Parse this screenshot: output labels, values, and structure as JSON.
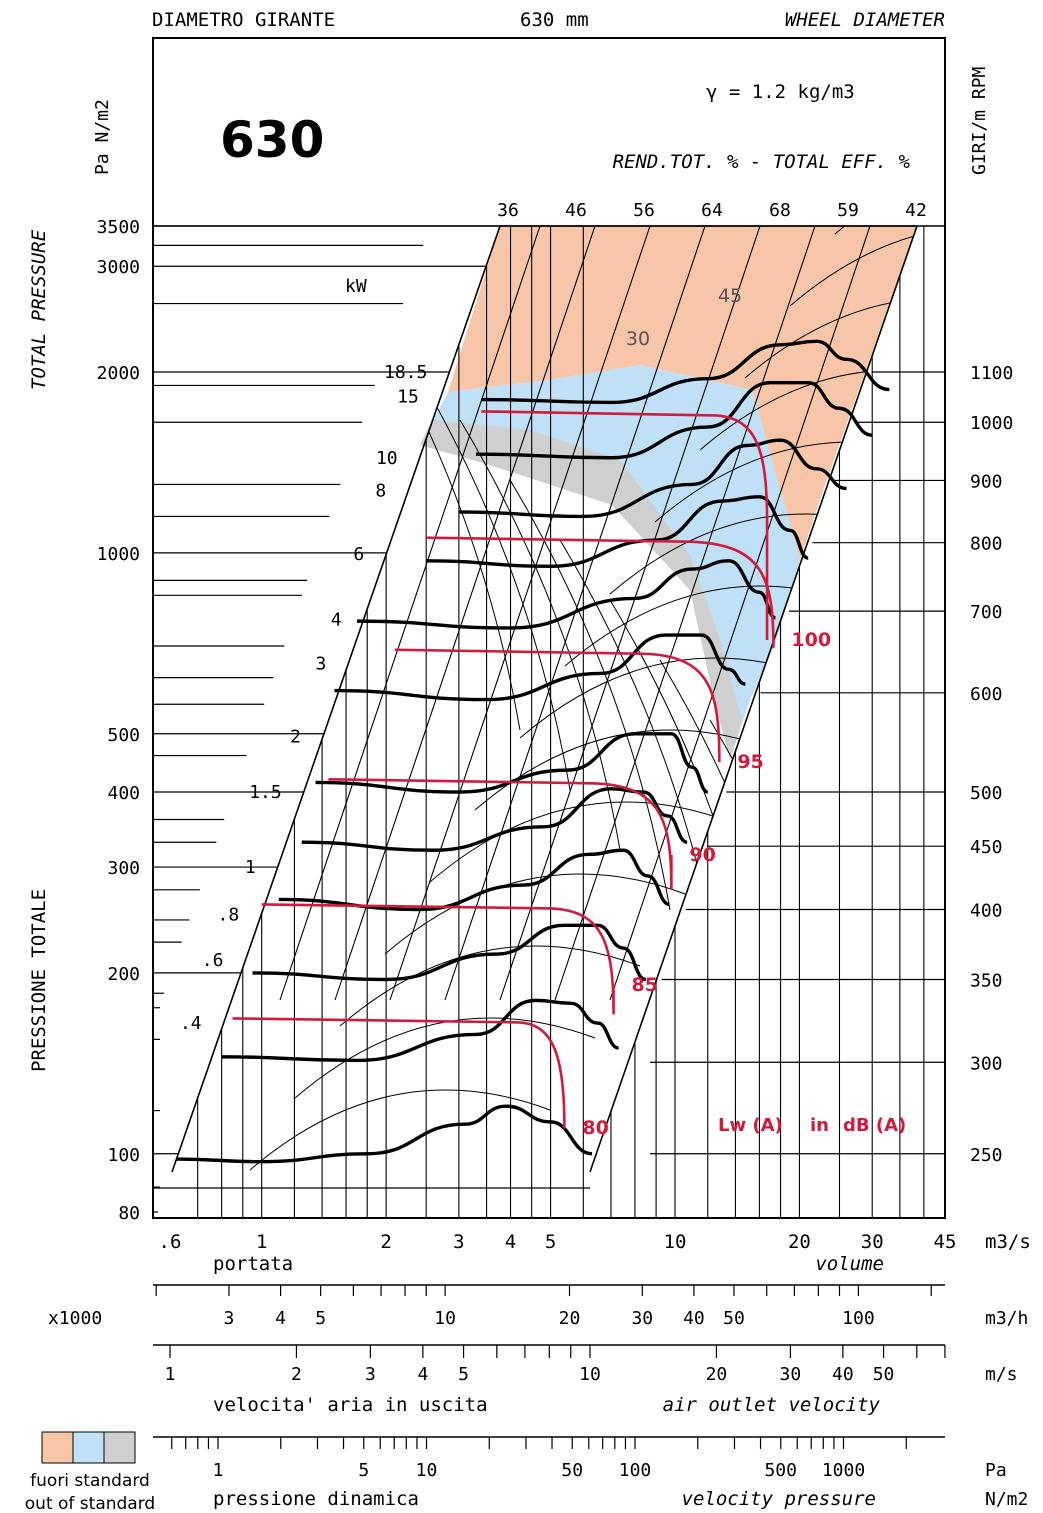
{
  "header": {
    "left": "DIAMETRO GIRANTE",
    "center": "630 mm",
    "right": "WHEEL DIAMETER"
  },
  "model": "630",
  "density": "γ = 1.2 kg/m3",
  "efficiency_title": "REND.TOT. % - TOTAL EFF. %",
  "left_unit": "Pa N/m2",
  "right_unit": "GIRI/m RPM",
  "kw_label": "kW",
  "y_title_top": "TOTAL PRESSURE",
  "y_title_bottom": "PRESSIONE TOTALE",
  "noise_unit_label": {
    "lw": "Lw (A)",
    "in": "in",
    "db": "dB (A)"
  },
  "legend": {
    "colors": [
      "#f7c6a8",
      "#bfe0f6",
      "#cfcfcf"
    ],
    "line1": "fuori standard",
    "line2": "out of standard"
  },
  "scales": [
    {
      "id": "volume_m3s",
      "unit": "m3/s",
      "label_it": "portata",
      "label_en": "volume",
      "ticks": [
        0.6,
        1,
        2,
        3,
        4,
        5,
        10,
        20,
        30,
        45
      ],
      "tick_labels": [
        ".6",
        "1",
        "2",
        "3",
        "4",
        "5",
        "10",
        "20",
        "30",
        "45"
      ]
    },
    {
      "id": "volume_m3h",
      "unit": "m3/h",
      "prefix": "x1000",
      "tick_labels": [
        "3",
        "4",
        "5",
        "10",
        "20",
        "30",
        "40",
        "50",
        "100"
      ],
      "ticks": [
        3,
        4,
        5,
        10,
        20,
        30,
        40,
        50,
        100
      ]
    },
    {
      "id": "outlet_velocity",
      "unit": "m/s",
      "label_it": "velocita' aria in uscita",
      "label_en": "air outlet velocity",
      "tick_labels": [
        "1",
        "2",
        "3",
        "4",
        "5",
        "10",
        "20",
        "30",
        "40",
        "50"
      ],
      "ticks": [
        1,
        2,
        3,
        4,
        5,
        10,
        20,
        30,
        40,
        50
      ]
    },
    {
      "id": "velocity_pressure",
      "unit_top": "Pa",
      "unit_bottom": "N/m2",
      "label_it": "pressione dinamica",
      "label_en": "velocity pressure",
      "tick_labels": [
        "1",
        "5",
        "10",
        "50",
        "100",
        "500",
        "1000"
      ],
      "ticks": [
        1,
        5,
        10,
        50,
        100,
        500,
        1000
      ]
    }
  ],
  "chart_data": {
    "type": "line",
    "x_axis": {
      "scale": "log",
      "unit": "m3/s",
      "range": [
        0.6,
        45
      ]
    },
    "y_axis": {
      "scale": "log",
      "unit": "Pa",
      "range": [
        80,
        3500
      ],
      "ticks": [
        80,
        100,
        200,
        300,
        400,
        500,
        1000,
        2000,
        3000,
        3500
      ],
      "tick_labels": [
        "80",
        "100",
        "200",
        "300",
        "400",
        "500",
        "1000",
        "2000",
        "3000",
        "3500"
      ]
    },
    "efficiency_labels": [
      "36",
      "46",
      "56",
      "64",
      "68",
      "59",
      "42"
    ],
    "rpm_ticks": [
      {
        "label": "1100",
        "p": 2000
      },
      {
        "label": "1000",
        "p": 1650
      },
      {
        "label": "900",
        "p": 1320
      },
      {
        "label": "800",
        "p": 1040
      },
      {
        "label": "700",
        "p": 800
      },
      {
        "label": "600",
        "p": 585
      },
      {
        "label": "500",
        "p": 400
      },
      {
        "label": "450",
        "p": 325
      },
      {
        "label": "400",
        "p": 255
      },
      {
        "label": "350",
        "p": 195
      },
      {
        "label": "300",
        "p": 142
      },
      {
        "label": "250",
        "p": 100
      }
    ],
    "power_labels": [
      {
        "label": "18.5",
        "p": 2000
      },
      {
        "label": "15",
        "p": 1820
      },
      {
        "label": "10",
        "p": 1440
      },
      {
        "label": "8",
        "p": 1270
      },
      {
        "label": "6",
        "p": 995
      },
      {
        "label": "4",
        "p": 775
      },
      {
        "label": "3",
        "p": 655
      },
      {
        "label": "2",
        "p": 495
      },
      {
        "label": "1.5",
        "p": 400
      },
      {
        "label": "1",
        "p": 300
      },
      {
        "label": ".8",
        "p": 250
      },
      {
        "label": ".6",
        "p": 210
      },
      {
        "label": ".4",
        "p": 165
      }
    ],
    "shaded_labels": [
      "30",
      "45"
    ],
    "noise_levels": [
      {
        "label": "80",
        "q0": 0.85,
        "p": 168,
        "q1": 4.2,
        "qv": 5.4
      },
      {
        "label": "85",
        "q0": 1.0,
        "p": 260,
        "q1": 5.0,
        "qv": 7.1
      },
      {
        "label": "90",
        "q0": 1.45,
        "p": 420,
        "q1": 6.3,
        "qv": 9.8
      },
      {
        "label": "95",
        "q0": 2.1,
        "p": 690,
        "q1": 8.4,
        "qv": 12.8
      },
      {
        "label": "100",
        "q0": 2.5,
        "p": 1060,
        "q1": 10.8,
        "qv": 17.3
      },
      {
        "label": "",
        "q0": 3.4,
        "p": 1720,
        "q1": 12.5,
        "qv": 16.7
      }
    ],
    "rpm_curves": [
      {
        "rpm": 1100,
        "pts": [
          [
            3.4,
            1800
          ],
          [
            7,
            1780
          ],
          [
            12,
            1950
          ],
          [
            18,
            2220
          ],
          [
            22,
            2250
          ],
          [
            26,
            2100
          ],
          [
            33,
            1870
          ]
        ]
      },
      {
        "rpm": 1000,
        "pts": [
          [
            3.3,
            1460
          ],
          [
            7,
            1440
          ],
          [
            12,
            1620
          ],
          [
            17,
            1920
          ],
          [
            21,
            1920
          ],
          [
            25,
            1740
          ],
          [
            30,
            1570
          ]
        ]
      },
      {
        "rpm": 900,
        "pts": [
          [
            3.0,
            1170
          ],
          [
            6,
            1150
          ],
          [
            11,
            1300
          ],
          [
            15,
            1510
          ],
          [
            18,
            1540
          ],
          [
            22,
            1380
          ],
          [
            26,
            1280
          ]
        ]
      },
      {
        "rpm": 800,
        "pts": [
          [
            2.5,
            970
          ],
          [
            5,
            950
          ],
          [
            9,
            1050
          ],
          [
            13,
            1220
          ],
          [
            16,
            1240
          ],
          [
            19,
            1090
          ],
          [
            21,
            980
          ]
        ]
      },
      {
        "rpm": 700,
        "pts": [
          [
            1.7,
            770
          ],
          [
            4,
            750
          ],
          [
            8,
            840
          ],
          [
            11,
            940
          ],
          [
            13.5,
            970
          ],
          [
            16,
            860
          ],
          [
            17.5,
            780
          ]
        ]
      },
      {
        "rpm": 600,
        "pts": [
          [
            1.5,
            590
          ],
          [
            3.5,
            570
          ],
          [
            6.6,
            630
          ],
          [
            9.5,
            730
          ],
          [
            11.6,
            730
          ],
          [
            13.5,
            640
          ],
          [
            14.8,
            605
          ]
        ]
      },
      {
        "rpm": 500,
        "pts": [
          [
            1.35,
            415
          ],
          [
            3,
            400
          ],
          [
            5.5,
            435
          ],
          [
            8,
            500
          ],
          [
            9.8,
            500
          ],
          [
            11,
            440
          ],
          [
            12,
            400
          ]
        ]
      },
      {
        "rpm": 450,
        "pts": [
          [
            1.25,
            330
          ],
          [
            2.6,
            320
          ],
          [
            4.8,
            350
          ],
          [
            7,
            405
          ],
          [
            8.4,
            400
          ],
          [
            9.6,
            365
          ],
          [
            10.7,
            330
          ]
        ]
      },
      {
        "rpm": 400,
        "pts": [
          [
            1.1,
            265
          ],
          [
            2.4,
            255
          ],
          [
            4.3,
            280
          ],
          [
            6.2,
            315
          ],
          [
            7.5,
            320
          ],
          [
            8.6,
            290
          ],
          [
            9.7,
            260
          ]
        ]
      },
      {
        "rpm": 350,
        "pts": [
          [
            0.95,
            200
          ],
          [
            2.0,
            195
          ],
          [
            3.7,
            215
          ],
          [
            5.4,
            240
          ],
          [
            6.5,
            240
          ],
          [
            7.5,
            220
          ],
          [
            8.5,
            195
          ]
        ]
      },
      {
        "rpm": 300,
        "pts": [
          [
            0.8,
            145
          ],
          [
            1.7,
            143
          ],
          [
            3.3,
            158
          ],
          [
            4.6,
            180
          ],
          [
            5.6,
            178
          ],
          [
            6.5,
            165
          ],
          [
            7.3,
            150
          ]
        ]
      },
      {
        "rpm": 250,
        "pts": [
          [
            0.62,
            98
          ],
          [
            1.0,
            97
          ],
          [
            1.8,
            100
          ],
          [
            3.1,
            112
          ],
          [
            3.9,
            120
          ],
          [
            5.0,
            113
          ],
          [
            6.3,
            100
          ]
        ]
      }
    ]
  }
}
